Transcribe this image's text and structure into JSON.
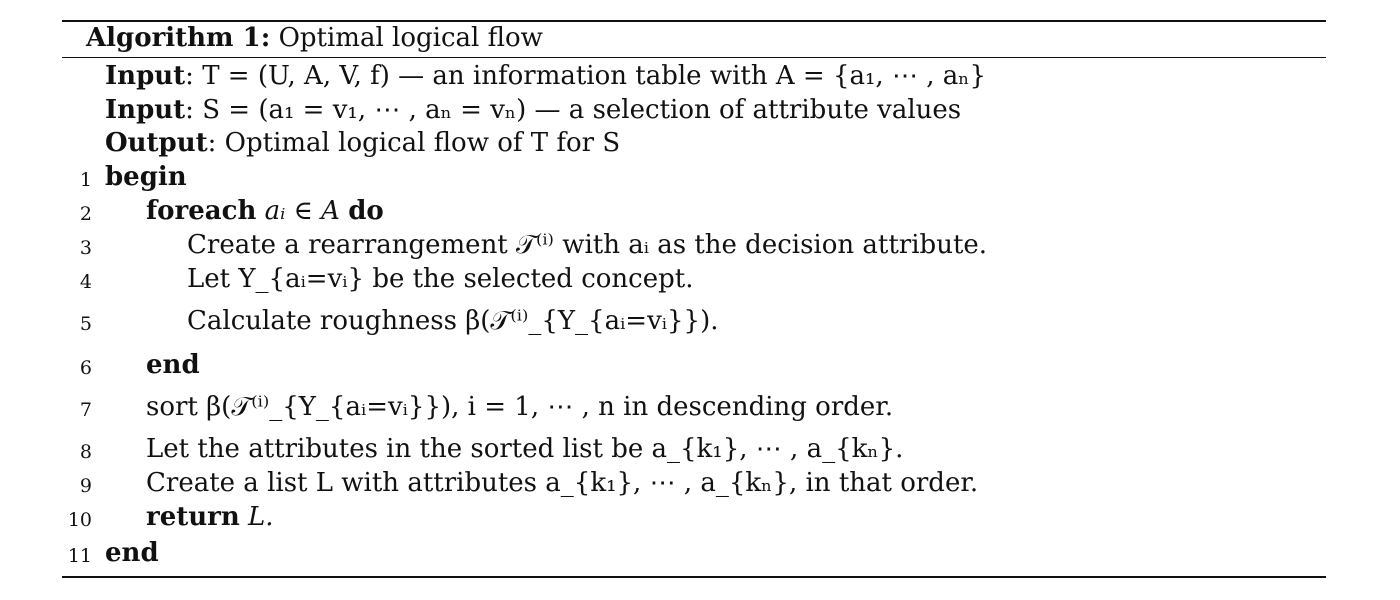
{
  "caption": {
    "label": "Algorithm 1:",
    "title": "Optimal logical flow"
  },
  "io": [
    {
      "kw": "Input",
      "text": ": T = (U, A, V, f) — an information table with A = {a₁, ⋯ , aₙ}"
    },
    {
      "kw": "Input",
      "text": ": S = (a₁ = v₁, ⋯ , aₙ = vₙ) — a selection of attribute values"
    },
    {
      "kw": "Output",
      "text": ": Optimal logical flow of T for S"
    }
  ],
  "lines": [
    {
      "num": "1",
      "kw": "begin",
      "text": ""
    },
    {
      "num": "2",
      "kw": "foreach",
      "text": "aᵢ ∈ A",
      "kw2": "do"
    },
    {
      "num": "3",
      "kw": "",
      "text": "Create a rearrangement 𝒯⁽ⁱ⁾ with aᵢ as the decision attribute."
    },
    {
      "num": "4",
      "kw": "",
      "text": "Let Y_{aᵢ=vᵢ} be the selected concept."
    },
    {
      "num": "5",
      "kw": "",
      "text": "Calculate roughness β(𝒯⁽ⁱ⁾_{Y_{aᵢ=vᵢ}})."
    },
    {
      "num": "6",
      "kw": "end",
      "text": ""
    },
    {
      "num": "7",
      "kw": "",
      "text": "sort β(𝒯⁽ⁱ⁾_{Y_{aᵢ=vᵢ}}), i = 1, ⋯ , n in descending order."
    },
    {
      "num": "8",
      "kw": "",
      "text": "Let the attributes in the sorted list be a_{k₁}, ⋯ , a_{kₙ}."
    },
    {
      "num": "9",
      "kw": "",
      "text": "Create a list L with attributes a_{k₁}, ⋯ , a_{kₙ}, in that order."
    },
    {
      "num": "10",
      "kw": "return",
      "text": "L."
    },
    {
      "num": "11",
      "kw": "end",
      "text": ""
    }
  ]
}
